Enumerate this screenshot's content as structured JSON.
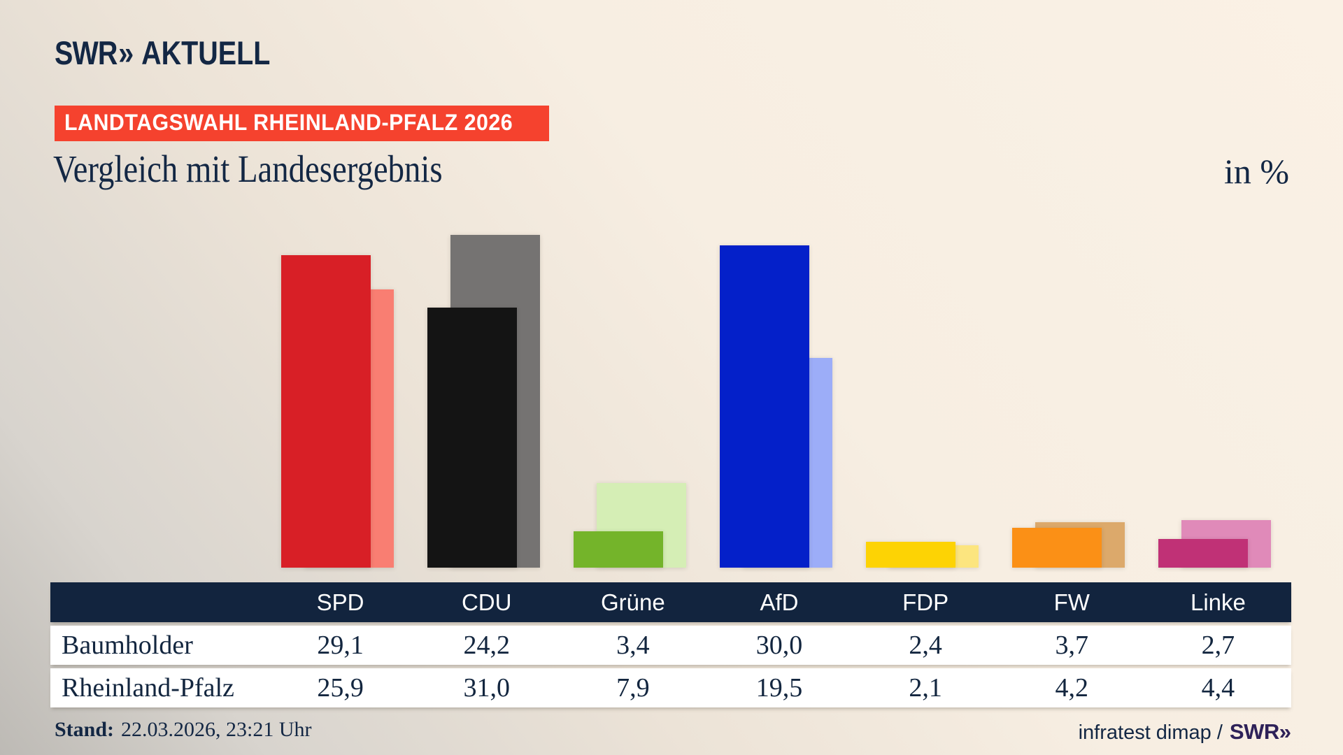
{
  "header": {
    "logo": {
      "brand": "SWR",
      "chevrons": "»",
      "product": "AKTUELL"
    },
    "badge": "LANDTAGSWAHL RHEINLAND-PFALZ 2026",
    "title": "Vergleich mit Landesergebnis",
    "unit": "in %"
  },
  "chart_data": {
    "type": "bar",
    "title": "Vergleich mit Landesergebnis",
    "unit": "in %",
    "value_format": "decimal-comma-1",
    "categories": [
      "SPD",
      "CDU",
      "Grüne",
      "AfD",
      "FDP",
      "FW",
      "Linke"
    ],
    "series": [
      {
        "name": "Baumholder",
        "role": "municipality-result-front-bars",
        "values": [
          29.1,
          24.2,
          3.4,
          30.0,
          2.4,
          3.7,
          2.7
        ]
      },
      {
        "name": "Rheinland-Pfalz",
        "role": "state-result-back-bars",
        "values": [
          25.9,
          31.0,
          7.9,
          19.5,
          2.1,
          4.2,
          4.4
        ]
      }
    ],
    "party_colors": [
      {
        "party": "SPD",
        "main": "#d81f26",
        "light": "#f97e72"
      },
      {
        "party": "CDU",
        "main": "#141414",
        "light": "#757372"
      },
      {
        "party": "Grüne",
        "main": "#74b42a",
        "light": "#d5eeb5"
      },
      {
        "party": "AfD",
        "main": "#0420c9",
        "light": "#9cadf8"
      },
      {
        "party": "FDP",
        "main": "#fdd304",
        "light": "#fce57f"
      },
      {
        "party": "FW",
        "main": "#fb9016",
        "light": "#dca96b"
      },
      {
        "party": "Linke",
        "main": "#c03176",
        "light": "#e08ab9"
      }
    ],
    "ylim": [
      0,
      33
    ],
    "grid": "off",
    "legend": "none (series named in table rows)"
  },
  "footer": {
    "stand_label": "Stand:",
    "stand_value": "22.03.2026, 23:21 Uhr",
    "source_prefix": "infratest dimap /",
    "source_brand": "SWR",
    "source_chevrons": "»"
  },
  "colors": {
    "background_light": "#faf1e5",
    "background_dark_corner": "#bdbab5",
    "text_navy": "#132744",
    "badge_red": "#f5422e",
    "table_header_bg": "#12243e",
    "table_row_bg": "#ffffff",
    "swr_source_purple": "#2e2158"
  }
}
